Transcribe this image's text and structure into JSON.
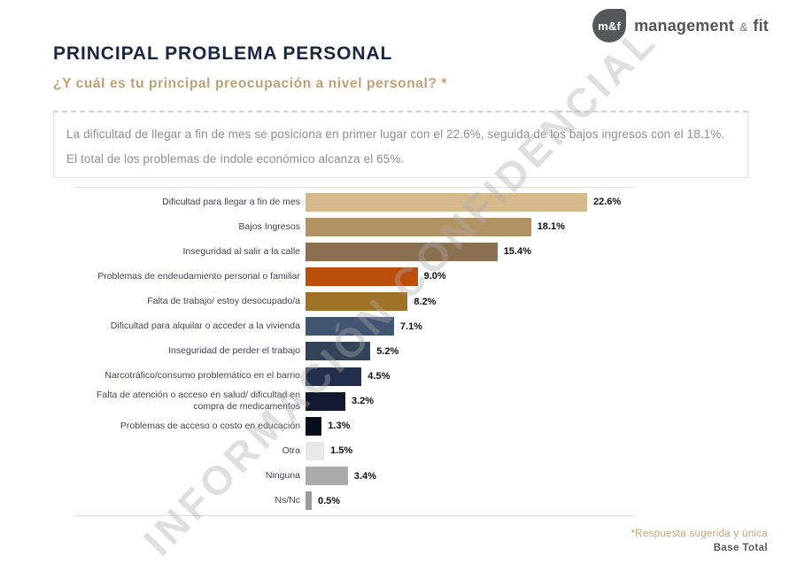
{
  "logo": {
    "mark": "m&f",
    "word1": "management",
    "amp": "&",
    "word2": "fit"
  },
  "header": {
    "title": "PRINCIPAL PROBLEMA PERSONAL",
    "subtitle": "¿Y cuál es tu principal preocupación a nivel personal? *"
  },
  "summary": {
    "line1": "La dificultad de llegar a fin de mes se posiciona en primer lugar con el 22.6%, seguida de los bajos ingresos con el 18.1%.",
    "line2": "El total de los problemas de índole económico alcanza el 65%."
  },
  "watermark": {
    "text": "INFORMACIÓN CONFIDENCIAL"
  },
  "footer": {
    "note": "*Respuesta sugerida y única",
    "base": "Base Total"
  },
  "chart_data": {
    "type": "bar",
    "orientation": "horizontal",
    "title": "PRINCIPAL PROBLEMA PERSONAL",
    "xlabel": "",
    "ylabel": "",
    "xmax": 22.6,
    "grid": false,
    "legend": false,
    "categories": [
      "Dificultad para llegar a fin de mes",
      "Bajos Ingresos",
      "Inseguridad al salir a la calle",
      "Problemas de endeudamiento personal o familiar",
      "Falta de trabajo/ estoy desocupado/a",
      "Dificultad para alquilar o acceder a la vivienda",
      "Inseguridad de perder el trabajo",
      "Narcotráfico/consumo problemático en el barrio",
      "Falta de atención o acceso en salud/ dificultad en compra de medicamentos",
      "Problemas de acceso o costo en educación",
      "Otra",
      "Ninguna",
      "Ns/Nc"
    ],
    "values": [
      22.6,
      18.1,
      15.4,
      9.0,
      8.2,
      7.1,
      5.2,
      4.5,
      3.2,
      1.3,
      1.5,
      3.4,
      0.5
    ],
    "value_labels": [
      "22.6%",
      "18.1%",
      "15.4%",
      "9.0%",
      "8.2%",
      "7.1%",
      "5.2%",
      "4.5%",
      "3.2%",
      "1.3%",
      "1.5%",
      "3.4%",
      "0.5%"
    ],
    "colors": [
      "#D6B88D",
      "#B29263",
      "#8A7050",
      "#BC4E0B",
      "#9E7227",
      "#425571",
      "#334459",
      "#232F4D",
      "#111A30",
      "#0A0F1D",
      "#E8E8E8",
      "#ABABAB",
      "#9C9C9C"
    ]
  }
}
